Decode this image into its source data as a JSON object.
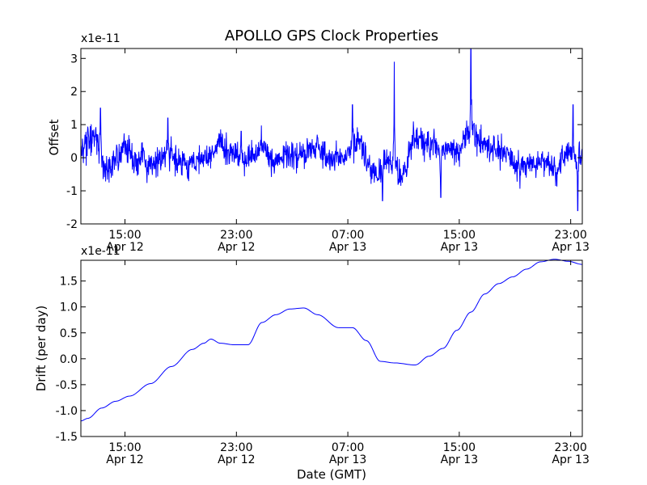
{
  "chart_data": [
    {
      "type": "line",
      "title": "APOLLO GPS Clock Properties",
      "ylabel": "Offset",
      "scale_label": "x1e-11",
      "ylim": [
        -2,
        3.3
      ],
      "y_ticks": [
        {
          "value": -2,
          "label": "-2"
        },
        {
          "value": -1,
          "label": "-1"
        },
        {
          "value": 0,
          "label": "0"
        },
        {
          "value": 1,
          "label": "1"
        },
        {
          "value": 2,
          "label": "2"
        },
        {
          "value": 3,
          "label": "3"
        }
      ],
      "x_ticks": [
        {
          "time": "2013-04-12T15:00",
          "line1": "15:00",
          "line2": "Apr 12"
        },
        {
          "time": "2013-04-12T23:00",
          "line1": "23:00",
          "line2": "Apr 12"
        },
        {
          "time": "2013-04-13T07:00",
          "line1": "07:00",
          "line2": "Apr 13"
        },
        {
          "time": "2013-04-13T15:00",
          "line1": "15:00",
          "line2": "Apr 13"
        },
        {
          "time": "2013-04-13T23:00",
          "line1": "23:00",
          "line2": "Apr 13"
        }
      ],
      "xlim": [
        "2013-04-12T11:50",
        "2013-04-13T23:50"
      ],
      "series_color": "#0000ff",
      "series": [
        {
          "x": [
            "2013-04-12T11:50",
            "2013-04-12T12:50",
            "2013-04-12T13:50",
            "2013-04-12T14:50",
            "2013-04-12T15:50",
            "2013-04-12T16:50",
            "2013-04-12T17:50",
            "2013-04-12T18:50",
            "2013-04-12T19:50",
            "2013-04-12T20:50",
            "2013-04-12T21:50",
            "2013-04-12T22:50",
            "2013-04-12T23:50",
            "2013-04-13T00:50",
            "2013-04-13T01:50",
            "2013-04-13T02:50",
            "2013-04-13T03:50",
            "2013-04-13T04:50",
            "2013-04-13T05:50",
            "2013-04-13T06:50",
            "2013-04-13T07:50",
            "2013-04-13T08:50",
            "2013-04-13T09:50",
            "2013-04-13T10:50",
            "2013-04-13T11:50",
            "2013-04-13T12:50",
            "2013-04-13T13:50",
            "2013-04-13T14:50",
            "2013-04-13T15:50",
            "2013-04-13T16:50",
            "2013-04-13T17:50",
            "2013-04-13T18:50",
            "2013-04-13T19:50",
            "2013-04-13T20:50",
            "2013-04-13T21:50",
            "2013-04-13T22:50",
            "2013-04-13T23:50"
          ],
          "values": [
            0.2,
            0.6,
            -0.4,
            0.2,
            0.0,
            -0.2,
            0.1,
            -0.1,
            -0.2,
            0.0,
            0.3,
            0.1,
            0.0,
            0.4,
            -0.2,
            0.2,
            0.1,
            0.3,
            -0.1,
            0.1,
            0.5,
            -0.3,
            -0.2,
            -0.4,
            0.6,
            0.4,
            0.3,
            0.1,
            0.8,
            0.3,
            0.2,
            0.0,
            -0.3,
            0.0,
            -0.4,
            0.1,
            0.0
          ],
          "peaks": [
            {
              "x": "2013-04-12T13:15",
              "y": 1.5
            },
            {
              "x": "2013-04-12T18:05",
              "y": 1.2
            },
            {
              "x": "2013-04-12T23:20",
              "y": 0.8
            },
            {
              "x": "2013-04-13T07:20",
              "y": 1.6
            },
            {
              "x": "2013-04-13T09:30",
              "y": -1.3
            },
            {
              "x": "2013-04-13T10:20",
              "y": 2.9
            },
            {
              "x": "2013-04-13T13:40",
              "y": -1.2
            },
            {
              "x": "2013-04-13T15:50",
              "y": 3.3
            },
            {
              "x": "2013-04-13T23:10",
              "y": 1.6
            },
            {
              "x": "2013-04-13T23:30",
              "y": -1.6
            }
          ]
        }
      ]
    },
    {
      "type": "line",
      "xlabel": "Date (GMT)",
      "ylabel": "Drift (per day)",
      "scale_label": "x1e-11",
      "ylim": [
        -1.5,
        1.9
      ],
      "y_ticks": [
        {
          "value": -1.5,
          "label": "-1.5"
        },
        {
          "value": -1.0,
          "label": "-1.0"
        },
        {
          "value": -0.5,
          "label": "-0.5"
        },
        {
          "value": 0.0,
          "label": "0.0"
        },
        {
          "value": 0.5,
          "label": "0.5"
        },
        {
          "value": 1.0,
          "label": "1.0"
        },
        {
          "value": 1.5,
          "label": "1.5"
        }
      ],
      "x_ticks": [
        {
          "time": "2013-04-12T15:00",
          "line1": "15:00",
          "line2": "Apr 12"
        },
        {
          "time": "2013-04-12T23:00",
          "line1": "23:00",
          "line2": "Apr 12"
        },
        {
          "time": "2013-04-13T07:00",
          "line1": "07:00",
          "line2": "Apr 13"
        },
        {
          "time": "2013-04-13T15:00",
          "line1": "15:00",
          "line2": "Apr 13"
        },
        {
          "time": "2013-04-13T23:00",
          "line1": "23:00",
          "line2": "Apr 13"
        }
      ],
      "xlim": [
        "2013-04-12T11:50",
        "2013-04-13T23:50"
      ],
      "series_color": "#0000ff",
      "series": [
        {
          "x": [
            "2013-04-12T11:50",
            "2013-04-12T12:20",
            "2013-04-12T13:20",
            "2013-04-12T14:20",
            "2013-04-12T15:20",
            "2013-04-12T16:50",
            "2013-04-12T18:20",
            "2013-04-12T19:50",
            "2013-04-12T20:40",
            "2013-04-12T21:10",
            "2013-04-12T21:50",
            "2013-04-12T22:50",
            "2013-04-12T23:50",
            "2013-04-13T00:50",
            "2013-04-13T01:50",
            "2013-04-13T02:50",
            "2013-04-13T03:50",
            "2013-04-13T04:50",
            "2013-04-13T06:20",
            "2013-04-13T07:20",
            "2013-04-13T08:20",
            "2013-04-13T09:20",
            "2013-04-13T10:20",
            "2013-04-13T11:50",
            "2013-04-13T12:50",
            "2013-04-13T13:50",
            "2013-04-13T14:50",
            "2013-04-13T15:50",
            "2013-04-13T16:50",
            "2013-04-13T17:50",
            "2013-04-13T18:50",
            "2013-04-13T19:50",
            "2013-04-13T20:50",
            "2013-04-13T21:50",
            "2013-04-13T22:50",
            "2013-04-13T23:50"
          ],
          "values": [
            -1.2,
            -1.15,
            -0.95,
            -0.82,
            -0.72,
            -0.48,
            -0.15,
            0.18,
            0.3,
            0.38,
            0.3,
            0.27,
            0.27,
            0.7,
            0.85,
            0.96,
            0.98,
            0.85,
            0.6,
            0.6,
            0.35,
            -0.05,
            -0.08,
            -0.12,
            0.05,
            0.2,
            0.55,
            0.9,
            1.25,
            1.45,
            1.58,
            1.73,
            1.87,
            1.92,
            1.88,
            1.82
          ]
        }
      ]
    }
  ]
}
